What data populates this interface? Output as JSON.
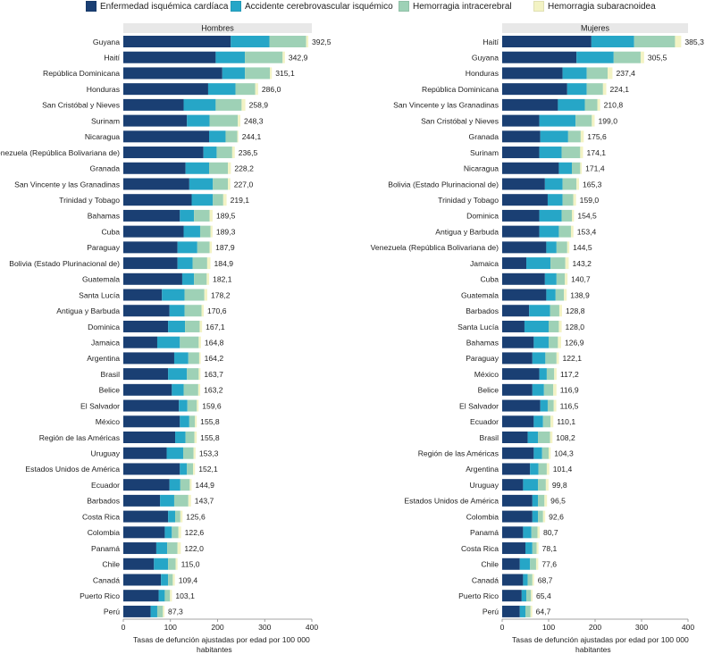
{
  "chart_data": [
    {
      "type": "bar",
      "orientation": "horizontal",
      "stacked": true,
      "title": "Hombres",
      "xlabel": "Tasas de defunción ajustadas por edad por 100 000 habitantes",
      "xlim": [
        0,
        400
      ],
      "xticks": [
        "0",
        "100",
        "200",
        "300",
        "400"
      ],
      "categories": [
        "Guyana",
        "Haití",
        "República Dominicana",
        "Honduras",
        "San Cristóbal y Nieves",
        "Surinam",
        "Nicaragua",
        "Venezuela (República Bolivariana de)",
        "Granada",
        "San Vincente y las Granadinas",
        "Trinidad y Tobago",
        "Bahamas",
        "Cuba",
        "Paraguay",
        "Bolivia (Estado Plurinacional de)",
        "Guatemala",
        "Santa Lucía",
        "Antigua y Barbuda",
        "Dominica",
        "Jamaica",
        "Argentina",
        "Brasil",
        "Belice",
        "El Salvador",
        "México",
        "Región de las Américas",
        "Uruguay",
        "Estados Unidos de América",
        "Ecuador",
        "Barbados",
        "Costa Rica",
        "Colombia",
        "Panamá",
        "Chile",
        "Canadá",
        "Puerto Rico",
        "Perú"
      ],
      "totals": [
        "392,5",
        "342,9",
        "315,1",
        "286,0",
        "258,9",
        "248,3",
        "244,1",
        "236,5",
        "228,2",
        "227,0",
        "219,1",
        "189,5",
        "189,3",
        "187,9",
        "184,9",
        "182,1",
        "178,2",
        "170,6",
        "167,1",
        "164,8",
        "164,2",
        "163,7",
        "163,2",
        "159,6",
        "155,8",
        "155,8",
        "153,3",
        "152,1",
        "144,9",
        "143,7",
        "125,6",
        "122,6",
        "122,0",
        "115,0",
        "109,4",
        "103,1",
        "87,3"
      ],
      "series": [
        {
          "name": "Enfermedad isquémica cardíaca",
          "values": [
            228,
            196,
            210,
            180,
            128,
            135,
            182,
            170,
            132,
            140,
            145,
            120,
            128,
            115,
            115,
            125,
            82,
            98,
            95,
            72,
            108,
            95,
            103,
            118,
            120,
            110,
            92,
            120,
            98,
            78,
            95,
            88,
            70,
            65,
            80,
            75,
            58
          ]
        },
        {
          "name": "Accidente cerebrovascular isquémico",
          "values": [
            82,
            62,
            48,
            58,
            68,
            48,
            35,
            28,
            50,
            50,
            45,
            30,
            35,
            42,
            32,
            25,
            48,
            32,
            36,
            48,
            30,
            40,
            25,
            18,
            20,
            22,
            35,
            15,
            23,
            30,
            15,
            15,
            23,
            30,
            15,
            13,
            14
          ]
        },
        {
          "name": "Hemorragia intracerebral",
          "values": [
            78,
            80,
            53,
            42,
            55,
            60,
            25,
            33,
            40,
            32,
            22,
            33,
            22,
            26,
            31,
            27,
            42,
            36,
            31,
            40,
            23,
            25,
            31,
            20,
            12,
            19,
            22,
            13,
            20,
            30,
            11,
            14,
            22,
            16,
            10,
            11,
            12
          ]
        },
        {
          "name": "Hemorragia subaracnoidea",
          "values": [
            4.5,
            4.9,
            4.1,
            6,
            7.9,
            5.3,
            2.1,
            5.5,
            6.2,
            5,
            7.1,
            6.5,
            4.3,
            4.9,
            6.9,
            5.1,
            6.2,
            4.6,
            5.1,
            4.8,
            3.2,
            3.7,
            4.2,
            3.6,
            3.8,
            4.8,
            4.3,
            4.1,
            3.9,
            5.7,
            4.6,
            5.6,
            7,
            4,
            4.4,
            4.1,
            3.3
          ]
        }
      ]
    },
    {
      "type": "bar",
      "orientation": "horizontal",
      "stacked": true,
      "title": "Mujeres",
      "xlabel": "Tasas de defunción ajustadas por edad por 100 000 habitantes",
      "xlim": [
        0,
        400
      ],
      "xticks": [
        "0",
        "100",
        "200",
        "300",
        "400"
      ],
      "categories": [
        "Haití",
        "Guyana",
        "Honduras",
        "República Dominicana",
        "San Vincente y las Granadinas",
        "San Cristóbal y Nieves",
        "Granada",
        "Surinam",
        "Nicaragua",
        "Bolivia (Estado Plurinacional de)",
        "Trinidad y Tobago",
        "Dominica",
        "Antigua y Barbuda",
        "Venezuela (República Bolivariana de)",
        "Jamaica",
        "Cuba",
        "Guatemala",
        "Barbados",
        "Santa Lucía",
        "Bahamas",
        "Paraguay",
        "México",
        "Belice",
        "El Salvador",
        "Ecuador",
        "Brasil",
        "Región de las Américas",
        "Argentina",
        "Uruguay",
        "Estados Unidos de América",
        "Colombia",
        "Panamá",
        "Costa Rica",
        "Chile",
        "Canadá",
        "Puerto Rico",
        "Perú"
      ],
      "totals": [
        "385,3",
        "305,5",
        "237,4",
        "224,1",
        "210,8",
        "199,0",
        "175,6",
        "174,1",
        "171,4",
        "165,3",
        "159,0",
        "154,5",
        "153,4",
        "144,5",
        "143,2",
        "140,7",
        "138,9",
        "128,8",
        "128,0",
        "126,9",
        "122,1",
        "117,2",
        "116,9",
        "116,5",
        "110,1",
        "108,2",
        "104,3",
        "101,4",
        "99,8",
        "96,5",
        "92,6",
        "80,7",
        "78,1",
        "77,6",
        "68,7",
        "65,4",
        "64,7"
      ],
      "series": [
        {
          "name": "Enfermedad isquémica cardíaca",
          "values": [
            192,
            160,
            130,
            140,
            120,
            80,
            82,
            80,
            122,
            92,
            98,
            80,
            80,
            95,
            52,
            92,
            95,
            58,
            48,
            68,
            65,
            80,
            65,
            82,
            68,
            55,
            68,
            60,
            45,
            65,
            65,
            45,
            50,
            38,
            45,
            42,
            38
          ]
        },
        {
          "name": "Accidente cerebrovascular isquémico",
          "values": [
            92,
            80,
            52,
            42,
            58,
            78,
            60,
            48,
            28,
            38,
            32,
            48,
            42,
            22,
            52,
            25,
            20,
            45,
            52,
            32,
            28,
            16,
            25,
            16,
            20,
            22,
            18,
            18,
            32,
            12,
            12,
            18,
            15,
            22,
            10,
            10,
            12
          ]
        },
        {
          "name": "Hemorragia intracerebral",
          "values": [
            88,
            58,
            45,
            35,
            27,
            35,
            27,
            40,
            18,
            30,
            23,
            22,
            26,
            23,
            32,
            18,
            18,
            20,
            22,
            20,
            24,
            16,
            20,
            13,
            16,
            26,
            14,
            18,
            17,
            14,
            11,
            13,
            9,
            13,
            10,
            10,
            11
          ]
        },
        {
          "name": "Hemorragia subaracnoidea",
          "values": [
            13.3,
            7.5,
            10.4,
            7.1,
            5.8,
            6,
            6.6,
            6.1,
            3.4,
            5.3,
            6,
            4.5,
            5.4,
            4.5,
            7.2,
            5.7,
            5.9,
            5.8,
            6,
            6.9,
            5.1,
            5.2,
            6.9,
            5.5,
            6.1,
            5.2,
            4.3,
            5.4,
            5.8,
            5.5,
            4.6,
            4.7,
            4.1,
            4.6,
            3.7,
            3.4,
            3.7
          ]
        }
      ]
    }
  ],
  "legend": {
    "items": [
      {
        "label": "Enfermedad isquémica cardíaca",
        "color": "#1a3f73"
      },
      {
        "label": "Accidente cerebrovascular isquémico",
        "color": "#26a6c7"
      },
      {
        "label": "Hemorragia intracerebral",
        "color": "#9ed1b6"
      },
      {
        "label": "Hemorragia subaracnoidea",
        "color": "#f3f3c4"
      }
    ]
  },
  "colors": {
    "header_bg": "#e8e8e8",
    "axis": "#888888"
  }
}
